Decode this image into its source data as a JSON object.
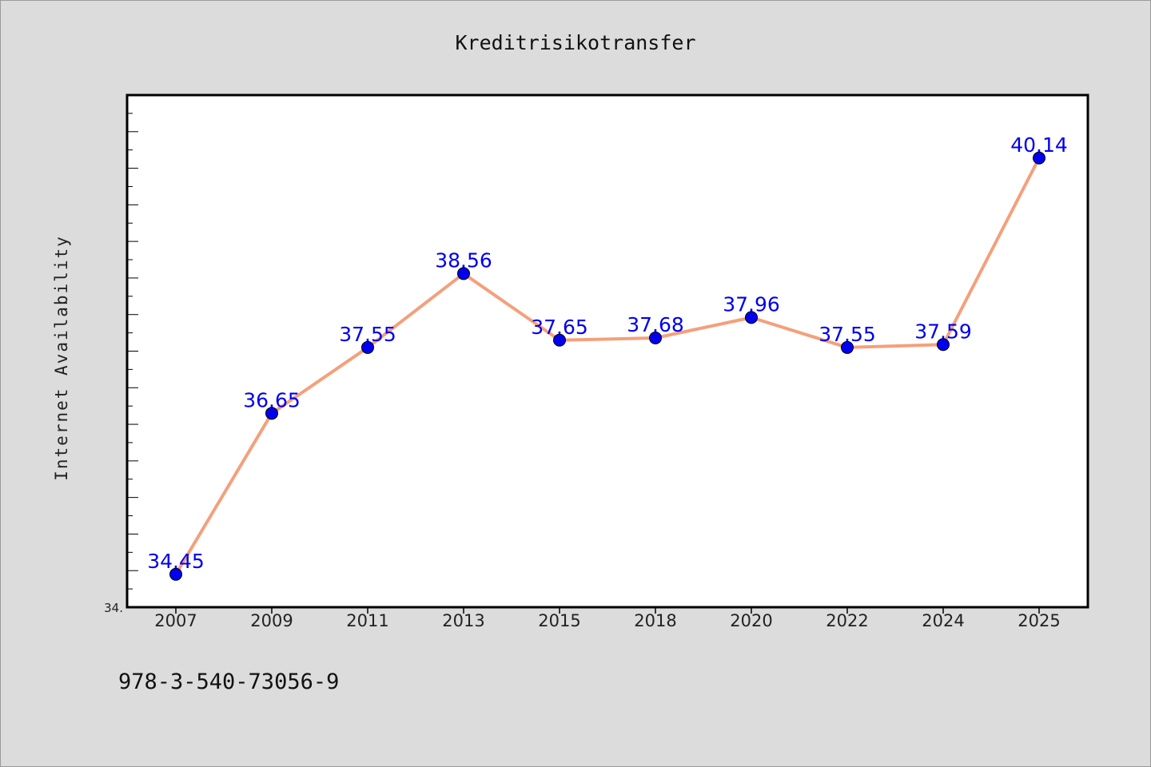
{
  "chart_data": {
    "type": "line",
    "title": "Kreditrisikotransfer",
    "xlabel": "",
    "ylabel": "Internet Availability",
    "categories": [
      "2007",
      "2009",
      "2011",
      "2013",
      "2015",
      "2018",
      "2020",
      "2022",
      "2024",
      "2025"
    ],
    "series": [
      {
        "values": [
          34.45,
          36.65,
          37.55,
          38.56,
          37.65,
          37.68,
          37.96,
          37.55,
          37.59,
          40.14
        ],
        "line_color": "#f4a07c",
        "marker_color": "#0000ee"
      }
    ],
    "data_labels": [
      "34.45",
      "36.65",
      "37.55",
      "38.56",
      "37.65",
      "37.68",
      "37.96",
      "37.55",
      "37.59",
      "40.14"
    ],
    "ylim": [
      34.0,
      41.0
    ],
    "y_min_tick_label": "34.",
    "grid": false,
    "legend": "none",
    "plot_background": "#ffffff",
    "figure_background": "#dcdcdc"
  },
  "footer": {
    "isbn": "978-3-540-73056-9"
  }
}
